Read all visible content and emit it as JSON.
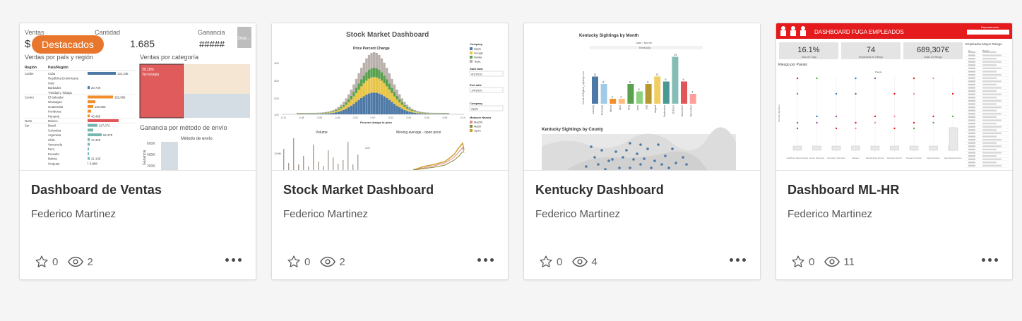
{
  "cards": [
    {
      "title": "Dashboard de Ventas",
      "author": "Federico Martinez",
      "badge": "Destacados",
      "favorites": "0",
      "views": "2",
      "thumb": {
        "k1_label": "Ventas",
        "k2_label": "Cantidad",
        "k2_value": "1.685",
        "k3_label": "Ganancia",
        "k3_value": "#####",
        "dl": "Dow...",
        "t_region": "Ventas por país y región",
        "t_cat": "Ventas por categoría",
        "t_envio": "Ganancia por método de envío",
        "h_region": "Región",
        "h_pais": "País/Región",
        "regions": [
          "Caribe",
          "Centro",
          "Norte",
          "Sur"
        ],
        "countries": [
          "Cuba",
          "República Dominicana",
          "Haití",
          "Barbados",
          "Trinidad y Tobago",
          "El Salvador",
          "Nicaragua",
          "Guatemala",
          "Honduras",
          "Panamá",
          "México",
          "Brasil",
          "Colombia",
          "Argentina",
          "Chile",
          "Venezuela",
          "Perú",
          "Ecuador",
          "Bolivia",
          "Uruguay"
        ],
        "values": [
          "131,336",
          "20,749",
          "152,666",
          "153,966",
          "40,465",
          "227,072",
          "56,378",
          "17,425",
          "21,135",
          "6,888"
        ],
        "cat_pct": "39.18%",
        "cat_name": "Tecnología",
        "envio_sub": "Método de envío",
        "envio_axis": "Ganancia",
        "envio_ticks": [
          "600K",
          "400K",
          "200K"
        ]
      }
    },
    {
      "title": "Stock Market Dashboard",
      "author": "Federico Martinez",
      "favorites": "0",
      "views": "2",
      "thumb": {
        "main_title": "Stock Market Dashboard",
        "sub_title": "Price Percent Change",
        "x_label": "Percent change in price",
        "x_ticks": [
          "-0,10",
          "-0,08",
          "-0,06",
          "-0,04",
          "-0,02",
          "0,00",
          "0,02",
          "0,04",
          "0,06",
          "0,08",
          "0,10"
        ],
        "y_ticks": [
          "400",
          "300",
          "200",
          "100",
          "0"
        ],
        "legend_title": "Company",
        "companies": [
          "Apple",
          "Google",
          "Nvidia",
          "Tesla"
        ],
        "start_label": "Start Date",
        "start_value": "4/1/2016",
        "end_label": "End date",
        "end_value": "1/4/2020",
        "company2_label": "Company",
        "company2_value": "Apple",
        "measure_label": "Measure Names",
        "measures": [
          "Ma200",
          "Ma50",
          "Open"
        ],
        "volume_title": "Volume",
        "volume_tick": "100M",
        "ma_title": "Moving average - open price",
        "ma_tick": "200"
      }
    },
    {
      "title": "Kentucky Dashboard",
      "author": "Federico Martinez",
      "favorites": "0",
      "views": "4",
      "thumb": {
        "month_title": "Kentucky Sightings by Month",
        "group_header": "Date / Month",
        "state": "Kentucky",
        "y_label": "Count of Bigfoot_sightings.csv",
        "months": [
          "January",
          "February",
          "March",
          "April",
          "May",
          "June",
          "July",
          "August",
          "September",
          "October",
          "November",
          "December"
        ],
        "values": [
          11,
          8,
          2,
          2,
          8,
          5,
          8,
          11,
          9,
          19,
          9,
          4
        ],
        "county_title": "Kentucky Sightings by County"
      }
    },
    {
      "title": "Dashboard ML-HR",
      "author": "Federico Martinez",
      "favorites": "0",
      "views": "11",
      "thumb": {
        "header": "DASHBOARD FUGA EMPLEADOS",
        "dept": "Departamento",
        "kpis": [
          {
            "value": "16.1%",
            "label": "Tasa de Fuga"
          },
          {
            "value": "74",
            "label": "Empleados en Riesgo"
          },
          {
            "value": "689,307€",
            "label": "Dolas en Riesgo"
          }
        ],
        "risk_title": "Riesgo por Puesto",
        "table_title": "Empleados Mayor Riesgo",
        "col_id": "Id",
        "col_puesto": "Puesto",
        "puestos_col": "Puesto",
        "y_axis": "Scoring Abandono",
        "jobs": [
          "Healthcare Representative",
          "Human Resources",
          "Laboratory Technician",
          "Manager",
          "Manufacturing Director",
          "Research Director",
          "Research Scientist",
          "Sales Executive",
          "Sales Representative"
        ]
      }
    }
  ],
  "colors": {
    "badge": "#e8762d",
    "hr_red": "#e41a1c",
    "kentucky_teal": "#83c3b4"
  },
  "icons": [
    "star-icon",
    "eye-icon",
    "more-icon"
  ]
}
